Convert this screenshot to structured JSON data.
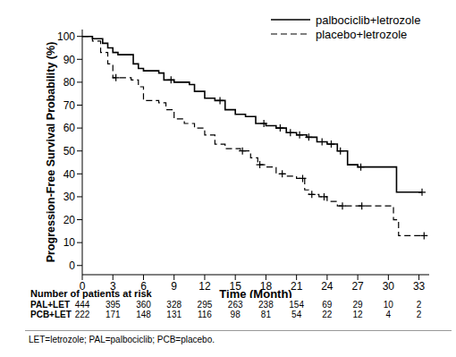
{
  "chart_data": {
    "type": "step",
    "xlabel": "Time (Month)",
    "ylabel": "Progression-Free Survival Probability (%)",
    "xlim": [
      0,
      34
    ],
    "xticks": [
      0,
      3,
      6,
      9,
      12,
      15,
      18,
      21,
      24,
      27,
      30,
      33
    ],
    "ylim": [
      -4,
      103
    ],
    "yticks": [
      0,
      10,
      20,
      30,
      40,
      50,
      60,
      70,
      80,
      90,
      100
    ],
    "legend": "upper right",
    "series": [
      {
        "name": "palbociclib+letrozole",
        "color": "#000000",
        "line_style": "solid",
        "marker": "plus",
        "x": [
          0,
          1,
          2,
          2.5,
          3,
          3.5,
          5,
          5.5,
          6,
          7.5,
          8,
          9,
          10.5,
          11,
          12,
          13,
          14,
          15,
          16,
          17,
          18,
          19,
          20,
          21,
          22,
          23,
          24,
          25,
          26,
          27,
          30.8,
          33.3
        ],
        "values": [
          100,
          99,
          97,
          95,
          93,
          92,
          88,
          86,
          85,
          84,
          81,
          80,
          79,
          76,
          73,
          72,
          68,
          66,
          65,
          62,
          61,
          60,
          58,
          57,
          56,
          54,
          53,
          50,
          44,
          43,
          32,
          32
        ],
        "censored": [
          8.7,
          13.5,
          17.8,
          19.4,
          20.4,
          21.3,
          22.2,
          23.5,
          24.4,
          25.3,
          27.3,
          33.3
        ]
      },
      {
        "name": "placebo+letrozole",
        "color": "#000000",
        "line_style": "dashed",
        "marker": "plus",
        "x": [
          0,
          1,
          1.8,
          2.5,
          3,
          4.8,
          5.5,
          6,
          7.5,
          8.2,
          9,
          10,
          11,
          12,
          13,
          14,
          15.5,
          16.5,
          17.2,
          18,
          19,
          20,
          21,
          21.8,
          22.2,
          23.2,
          24,
          25,
          30.5,
          31,
          33.5
        ],
        "values": [
          100,
          98,
          93,
          88,
          82,
          81,
          78,
          72,
          71,
          68,
          64,
          62,
          60,
          57,
          53,
          51,
          50,
          47,
          44,
          43,
          40,
          39,
          38,
          33,
          31,
          30,
          28,
          26,
          20,
          13,
          13
        ],
        "censored": [
          3.3,
          15.7,
          17.4,
          19.6,
          21.6,
          22.5,
          23.7,
          25.5,
          27.4,
          33.5
        ]
      }
    ],
    "at_risk": {
      "title": "Number of patients at risk",
      "rows": [
        {
          "label": "PAL+LET",
          "values": [
            444,
            395,
            360,
            328,
            295,
            263,
            238,
            154,
            69,
            29,
            10,
            2
          ]
        },
        {
          "label": "PCB+LET",
          "values": [
            222,
            171,
            148,
            131,
            116,
            98,
            81,
            54,
            22,
            12,
            4,
            2
          ]
        }
      ]
    },
    "footnote": "LET=letrozole; PAL=palbociclib; PCB=placebo."
  }
}
